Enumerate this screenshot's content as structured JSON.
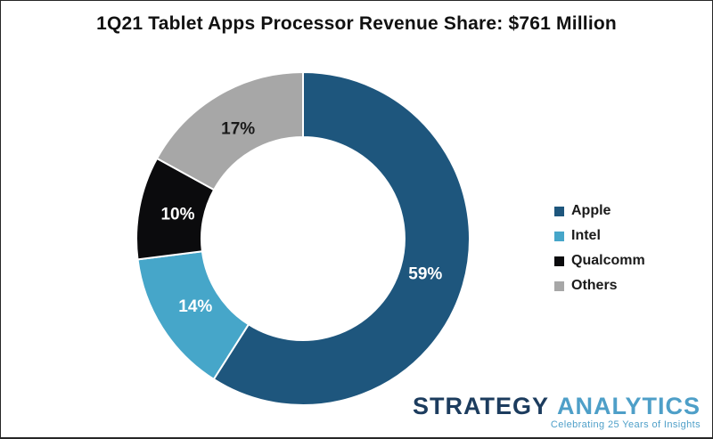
{
  "chart_data": {
    "type": "pie",
    "subtype": "donut",
    "title": "1Q21 Tablet Apps Processor Revenue Share: $761 Million",
    "categories": [
      "Apple",
      "Intel",
      "Qualcomm",
      "Others"
    ],
    "values": [
      59,
      14,
      10,
      17
    ],
    "labels": [
      "59%",
      "14%",
      "10%",
      "17%"
    ],
    "colors": [
      "#1e567d",
      "#46a6c9",
      "#0b0b0d",
      "#a7a7a7"
    ],
    "label_colors": [
      "#ffffff",
      "#ffffff",
      "#ffffff",
      "#1a1a1a"
    ],
    "start_angle_deg": 0,
    "direction": "clockwise",
    "donut_hole_ratio": 0.61,
    "separator_color": "#ffffff",
    "legend_position": "right",
    "units": "%"
  },
  "branding": {
    "name_part1": "STRATEGY",
    "name_part2": "ANALYTICS",
    "tagline": "Celebrating 25 Years of Insights",
    "color_part1": "#1c3c5e",
    "color_part2": "#4e9fc8"
  }
}
